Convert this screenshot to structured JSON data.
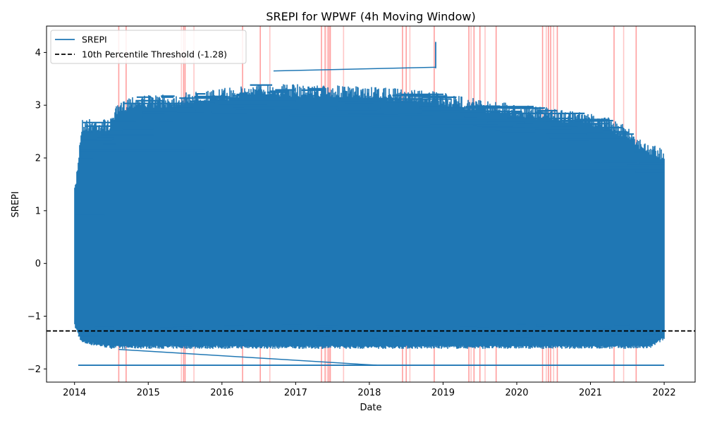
{
  "chart_data": {
    "type": "line",
    "title": "SREPI for WPWF (4h Moving Window)",
    "xlabel": "Date",
    "ylabel": "SREPI",
    "x_ticks": [
      "2014",
      "2015",
      "2016",
      "2017",
      "2018",
      "2019",
      "2020",
      "2021",
      "2022"
    ],
    "y_ticks": [
      -2,
      -1,
      0,
      1,
      2,
      3,
      4
    ],
    "y_tick_labels": [
      "−2",
      "−1",
      "0",
      "1",
      "2",
      "3",
      "4"
    ],
    "xlim": [
      2013.62,
      2022.42
    ],
    "ylim": [
      -2.25,
      4.5
    ],
    "grid": false,
    "legend_position": "upper-left",
    "colors": {
      "series": "#1f77b4",
      "threshold": "#000000",
      "drought_marker": "#ff0000"
    },
    "series": [
      {
        "name": "SREPI",
        "style": "solid",
        "x_start": 2014.0,
        "x_end": 2022.0,
        "dense_band_range": [
          -1.62,
          1.6
        ],
        "envelope_max": [
          [
            2014.0,
            1.4
          ],
          [
            2014.1,
            2.75
          ],
          [
            2014.5,
            2.75
          ],
          [
            2014.5,
            2.9
          ],
          [
            2014.75,
            3.2
          ],
          [
            2015.25,
            3.2
          ],
          [
            2016.6,
            3.42
          ],
          [
            2017.5,
            3.38
          ],
          [
            2018.7,
            3.3
          ],
          [
            2019.6,
            3.1
          ],
          [
            2020.0,
            3.02
          ],
          [
            2020.5,
            2.95
          ],
          [
            2021.2,
            2.8
          ],
          [
            2021.5,
            2.6
          ],
          [
            2021.75,
            2.3
          ],
          [
            2022.0,
            2.2
          ]
        ],
        "envelope_min": [
          [
            2014.0,
            -1.2
          ],
          [
            2014.1,
            -1.52
          ],
          [
            2014.5,
            -1.62
          ],
          [
            2021.8,
            -1.62
          ],
          [
            2022.0,
            -1.45
          ]
        ],
        "highest_value": {
          "x": 2018.9,
          "y": 4.2
        },
        "lowest_value": -1.93
      },
      {
        "name": "10th Percentile Threshold (-1.28)",
        "style": "dashed",
        "y": -1.28
      }
    ],
    "drought_markers": [
      2014.6,
      2014.7,
      2015.45,
      2015.48,
      2015.5,
      2015.62,
      2016.28,
      2016.52,
      2016.65,
      2017.35,
      2017.4,
      2017.43,
      2017.45,
      2017.47,
      2017.65,
      2018.45,
      2018.5,
      2018.55,
      2018.88,
      2019.35,
      2019.38,
      2019.42,
      2019.5,
      2019.57,
      2019.72,
      2020.35,
      2020.4,
      2020.43,
      2020.46,
      2020.5,
      2020.55,
      2021.32,
      2021.45,
      2021.62
    ]
  }
}
